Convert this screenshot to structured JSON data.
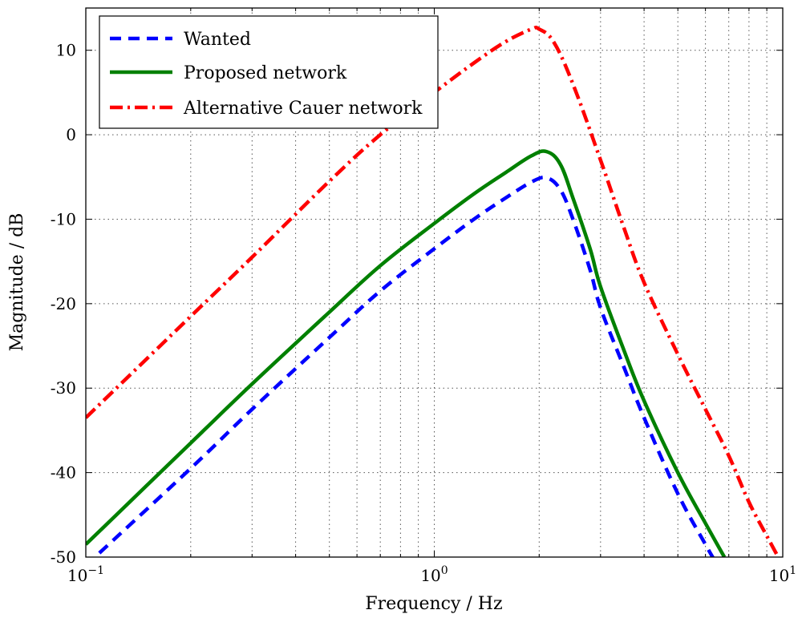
{
  "chart_data": {
    "type": "line",
    "xscale": "log",
    "xlim": [
      0.1,
      10
    ],
    "ylim": [
      -50,
      15
    ],
    "xlabel": "Frequency / Hz",
    "ylabel": "Magnitude / dB",
    "grid": true,
    "legend_position": "top-left",
    "x_ticks": [
      {
        "value": 0.1,
        "base": "10",
        "exp": "−1"
      },
      {
        "value": 1,
        "base": "10",
        "exp": "0"
      },
      {
        "value": 10,
        "base": "10",
        "exp": "1"
      }
    ],
    "y_ticks": [
      {
        "value": 10,
        "label": "10"
      },
      {
        "value": 0,
        "label": "0"
      },
      {
        "value": -10,
        "label": "-10"
      },
      {
        "value": -20,
        "label": "-20"
      },
      {
        "value": -30,
        "label": "-30"
      },
      {
        "value": -40,
        "label": "-40"
      },
      {
        "value": -50,
        "label": "-50"
      }
    ],
    "series": [
      {
        "name": "Wanted",
        "color": "#0000ff",
        "style": "dashed",
        "x": [
          0.1,
          0.2,
          0.3,
          0.5,
          0.7,
          1.0,
          1.3,
          1.6,
          1.9,
          2.1,
          2.3,
          2.5,
          2.8,
          3.0,
          3.5,
          4.0,
          5.0,
          6.0,
          6.5
        ],
        "y": [
          -51,
          -39.5,
          -32.5,
          -24,
          -18.5,
          -13.5,
          -10,
          -7.5,
          -5.6,
          -5.1,
          -6.5,
          -10,
          -16,
          -20.5,
          -27.5,
          -33.5,
          -42.5,
          -48.5,
          -51
        ]
      },
      {
        "name": "Proposed network",
        "color": "#008000",
        "style": "solid",
        "x": [
          0.1,
          0.2,
          0.3,
          0.5,
          0.7,
          1.0,
          1.3,
          1.6,
          1.9,
          2.1,
          2.3,
          2.5,
          2.8,
          3.0,
          3.5,
          4.0,
          5.0,
          6.0,
          6.8
        ],
        "y": [
          -48.5,
          -36.5,
          -29.5,
          -21,
          -15.5,
          -10.5,
          -7,
          -4.5,
          -2.5,
          -2,
          -3.5,
          -7.5,
          -13.5,
          -18,
          -25.5,
          -31.5,
          -40,
          -46,
          -50
        ]
      },
      {
        "name": "Alternative Cauer network",
        "color": "#ff0000",
        "style": "dashdot",
        "x": [
          0.1,
          0.2,
          0.3,
          0.5,
          0.7,
          1.0,
          1.3,
          1.6,
          1.9,
          2.0,
          2.2,
          2.5,
          3.0,
          3.5,
          4.0,
          5.0,
          6.0,
          7.0,
          8.0,
          9.0,
          10.0
        ],
        "y": [
          -33.5,
          -21.5,
          -14.5,
          -5.5,
          0,
          5,
          8.5,
          11,
          12.5,
          12.5,
          11,
          6,
          -3,
          -11,
          -17.5,
          -26,
          -32.5,
          -38,
          -43.5,
          -47.5,
          -51
        ]
      }
    ]
  }
}
